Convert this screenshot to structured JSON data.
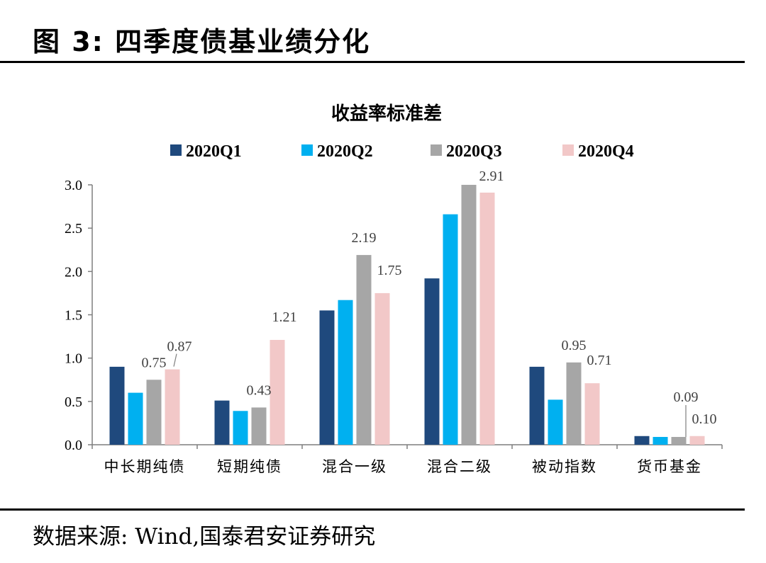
{
  "figure": {
    "title": "图 3:  四季度债基业绩分化",
    "source": "数据来源: Wind,国泰君安证券研究"
  },
  "chart_data": {
    "type": "bar",
    "title": "收益率标准差",
    "categories": [
      "中长期纯债",
      "短期纯债",
      "混合一级",
      "混合二级",
      "被动指数",
      "货币基金"
    ],
    "series": [
      {
        "name": "2020Q1",
        "color": "#1f497d",
        "values": [
          0.9,
          0.51,
          1.55,
          1.92,
          0.9,
          0.1
        ]
      },
      {
        "name": "2020Q2",
        "color": "#00b0f0",
        "values": [
          0.6,
          0.39,
          1.67,
          2.66,
          0.52,
          0.09
        ]
      },
      {
        "name": "2020Q3",
        "color": "#a6a6a6",
        "values": [
          0.75,
          0.43,
          2.19,
          3.0,
          0.95,
          0.09
        ]
      },
      {
        "name": "2020Q4",
        "color": "#f2c8c8",
        "values": [
          0.87,
          1.21,
          1.75,
          2.91,
          0.71,
          0.1
        ]
      }
    ],
    "data_labels": [
      {
        "category": 0,
        "series": 2,
        "text": "0.75"
      },
      {
        "category": 0,
        "series": 3,
        "text": "0.87"
      },
      {
        "category": 1,
        "series": 2,
        "text": "0.43"
      },
      {
        "category": 1,
        "series": 3,
        "text": "1.21"
      },
      {
        "category": 2,
        "series": 2,
        "text": "2.19"
      },
      {
        "category": 2,
        "series": 3,
        "text": "1.75"
      },
      {
        "category": 3,
        "series": 3,
        "text": "2.91"
      },
      {
        "category": 4,
        "series": 2,
        "text": "0.95"
      },
      {
        "category": 4,
        "series": 3,
        "text": "0.71"
      },
      {
        "category": 5,
        "series": 2,
        "text": "0.09"
      },
      {
        "category": 5,
        "series": 3,
        "text": "0.10"
      }
    ],
    "yticks": [
      "0.0",
      "0.5",
      "1.0",
      "1.5",
      "2.0",
      "2.5",
      "3.0"
    ],
    "ylim": [
      0,
      3.0
    ],
    "xlabel": "",
    "ylabel": "",
    "legend_position": "top",
    "grid": false
  }
}
